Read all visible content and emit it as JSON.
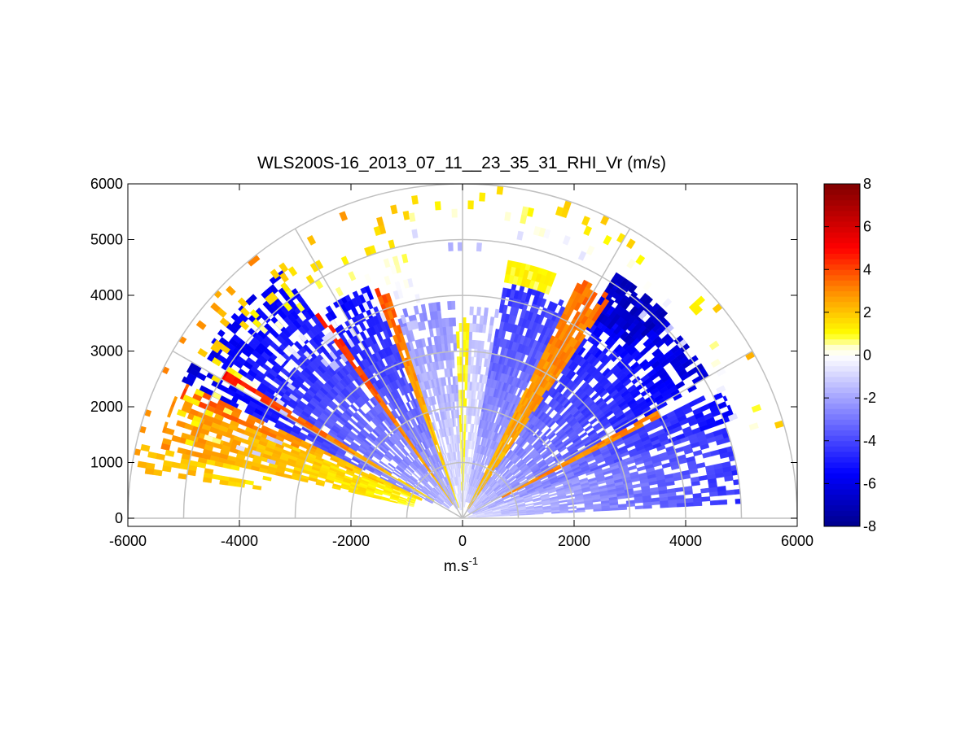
{
  "chart_data": {
    "type": "heatmap",
    "subtype": "polar-rhi",
    "title": "WLS200S-16_2013_07_11__23_35_31_RHI_Vr (m/s)",
    "xlabel_base": "m.s",
    "xlabel_exp": "-1",
    "ylabel": "",
    "xlim": [
      -6000,
      6000
    ],
    "ylim": [
      0,
      6000
    ],
    "xticks": [
      -6000,
      -4000,
      -2000,
      0,
      2000,
      4000,
      6000
    ],
    "yticks": [
      0,
      1000,
      2000,
      3000,
      4000,
      5000,
      6000
    ],
    "range_rings": [
      1000,
      2000,
      3000,
      4000,
      5000,
      6000
    ],
    "spokes_deg": [
      0,
      30,
      60,
      90,
      120,
      150,
      180
    ],
    "colorbar": {
      "min": -8,
      "max": 8,
      "ticks": [
        8,
        6,
        4,
        2,
        0,
        -2,
        -4,
        -6,
        -8
      ],
      "stops": [
        {
          "v": -8,
          "color": "#00008b"
        },
        {
          "v": -5.5,
          "color": "#0000ff"
        },
        {
          "v": -0.4,
          "color": "#eeeeff"
        },
        {
          "v": 0,
          "color": "#ffffff"
        },
        {
          "v": 0.4,
          "color": "#ffffcc"
        },
        {
          "v": 1,
          "color": "#ffff00"
        },
        {
          "v": 3,
          "color": "#ff8c00"
        },
        {
          "v": 5,
          "color": "#ff0000"
        },
        {
          "v": 8,
          "color": "#800000"
        }
      ]
    },
    "sectors": [
      {
        "az0": 3,
        "az1": 20,
        "r0": 100,
        "r1": 5000,
        "v0": -0.8,
        "v1": -4.5,
        "fill": 0.85
      },
      {
        "az0": 20,
        "az1": 27,
        "r0": 200,
        "r1": 5200,
        "v0": -1.5,
        "v1": -5.5,
        "fill": 0.9
      },
      {
        "az0": 27,
        "az1": 29,
        "r0": 800,
        "r1": 4000,
        "v0": 3.0,
        "v1": 3.0,
        "fill": 0.9
      },
      {
        "az0": 29,
        "az1": 58,
        "r0": 150,
        "r1": 5100,
        "v0": -1.2,
        "v1": -6.5,
        "fill": 0.85
      },
      {
        "az0": 45,
        "az1": 58,
        "r0": 4300,
        "r1": 5200,
        "v0": -6.5,
        "v1": -7.0,
        "fill": 0.8
      },
      {
        "az0": 56,
        "az1": 64,
        "r0": 200,
        "r1": 4800,
        "v0": 2.0,
        "v1": 3.5,
        "fill": 0.95
      },
      {
        "az0": 64,
        "az1": 80,
        "r0": 300,
        "r1": 4300,
        "v0": -1.2,
        "v1": -4.5,
        "fill": 0.95
      },
      {
        "az0": 69,
        "az1": 80,
        "r0": 4300,
        "r1": 4700,
        "v0": 1.0,
        "v1": 1.0,
        "fill": 0.95
      },
      {
        "az0": 80,
        "az1": 88,
        "r0": 200,
        "r1": 3800,
        "v0": -0.6,
        "v1": -1.5,
        "fill": 0.8
      },
      {
        "az0": 88,
        "az1": 92,
        "r0": 500,
        "r1": 3600,
        "v0": 0.8,
        "v1": 1.2,
        "fill": 0.8
      },
      {
        "az0": 92,
        "az1": 108,
        "r0": 150,
        "r1": 3900,
        "v0": -0.6,
        "v1": -2.5,
        "fill": 0.8
      },
      {
        "az0": 108,
        "az1": 111,
        "r0": 200,
        "r1": 4400,
        "v0": 1.2,
        "v1": 4.0,
        "fill": 0.95
      },
      {
        "az0": 111,
        "az1": 124,
        "r0": 200,
        "r1": 4500,
        "v0": -1.5,
        "v1": -5.5,
        "fill": 0.85
      },
      {
        "az0": 124,
        "az1": 126,
        "r0": 300,
        "r1": 4500,
        "v0": 2.0,
        "v1": 5.0,
        "fill": 0.95
      },
      {
        "az0": 126,
        "az1": 148,
        "r0": 300,
        "r1": 5500,
        "v0": -1.5,
        "v1": -6.0,
        "fill": 0.8
      },
      {
        "az0": 148,
        "az1": 150,
        "r0": 600,
        "r1": 5000,
        "v0": 1.5,
        "v1": 5.0,
        "fill": 0.95
      },
      {
        "az0": 150,
        "az1": 154,
        "r0": 600,
        "r1": 5600,
        "v0": -2.0,
        "v1": -6.5,
        "fill": 0.8
      },
      {
        "az0": 154,
        "az1": 157,
        "r0": 800,
        "r1": 5500,
        "v0": 1.5,
        "v1": 4.0,
        "fill": 0.9
      },
      {
        "az0": 157,
        "az1": 167,
        "r0": 900,
        "r1": 5600,
        "v0": 1.0,
        "v1": 3.0,
        "fill": 0.85
      },
      {
        "az0": 167,
        "az1": 172,
        "r0": 3500,
        "r1": 6000,
        "v0": 1.5,
        "v1": 2.5,
        "fill": 0.5
      },
      {
        "az0": 100,
        "az1": 165,
        "r0": 3500,
        "r1": 6000,
        "v0": -1.5,
        "v1": 3.0,
        "fill": 0.12
      },
      {
        "az0": 15,
        "az1": 100,
        "r0": 4800,
        "r1": 6000,
        "v0": -1.5,
        "v1": 2.5,
        "fill": 0.07
      }
    ]
  }
}
